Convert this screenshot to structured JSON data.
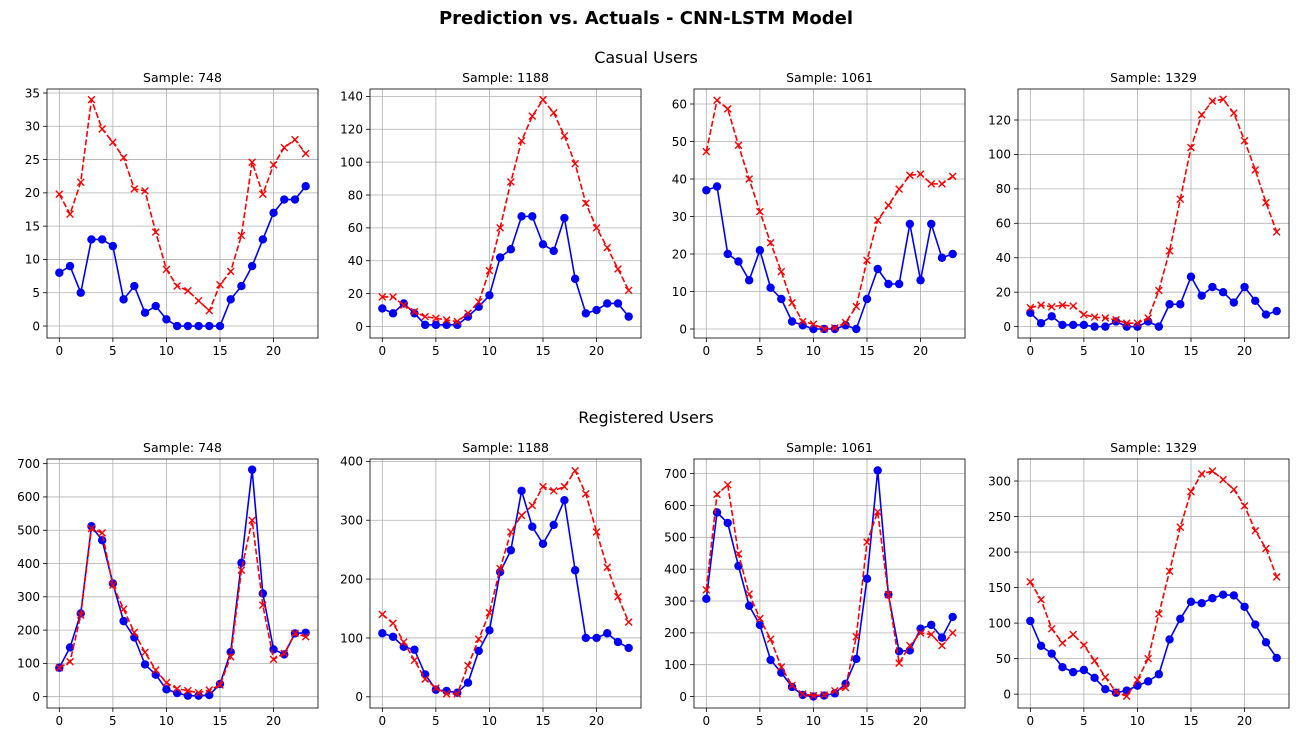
{
  "figure": {
    "title": "Prediction vs. Actuals - CNN-LSTM Model",
    "row_titles": [
      "Casual Users",
      "Registered Users"
    ]
  },
  "colors": {
    "actual": "#0000ff",
    "predicted": "#ff0000",
    "grid": "#b0b0b0"
  },
  "chart_data": [
    {
      "type": "line",
      "group": "Casual Users",
      "title": "Sample: 748",
      "x": [
        0,
        1,
        2,
        3,
        4,
        5,
        6,
        7,
        8,
        9,
        10,
        11,
        12,
        13,
        14,
        15,
        16,
        17,
        18,
        19,
        20,
        21,
        22,
        23
      ],
      "xlim": [
        -1.15,
        24.15
      ],
      "xticks": [
        0,
        5,
        10,
        15,
        20
      ],
      "ylim": [
        -1.8,
        35.6
      ],
      "yticks": [
        0,
        5,
        10,
        15,
        20,
        25,
        30,
        35
      ],
      "grid": true,
      "series": [
        {
          "role": "actual",
          "marker": "circle",
          "style": "solid",
          "values": [
            8,
            9,
            5,
            13,
            13,
            12,
            4,
            6,
            2,
            3,
            1,
            0,
            0,
            0,
            0,
            0,
            4,
            6,
            9,
            13,
            17,
            19,
            19,
            21
          ]
        },
        {
          "role": "predicted",
          "marker": "x",
          "style": "dashed",
          "values": [
            19.8,
            16.8,
            21.6,
            34,
            29.6,
            27.6,
            25.3,
            20.6,
            20.3,
            14.1,
            8.5,
            6,
            5.3,
            3.8,
            2.3,
            6.2,
            8.2,
            13.6,
            24.6,
            19.8,
            24.2,
            26.8,
            28,
            25.9
          ]
        }
      ]
    },
    {
      "type": "line",
      "group": "Casual Users",
      "title": "Sample: 1188",
      "x": [
        0,
        1,
        2,
        3,
        4,
        5,
        6,
        7,
        8,
        9,
        10,
        11,
        12,
        13,
        14,
        15,
        16,
        17,
        18,
        19,
        20,
        21,
        22,
        23
      ],
      "xlim": [
        -1.15,
        24.15
      ],
      "xticks": [
        0,
        5,
        10,
        15,
        20
      ],
      "ylim": [
        -7,
        144.5
      ],
      "yticks": [
        0,
        20,
        40,
        60,
        80,
        100,
        120,
        140
      ],
      "grid": true,
      "series": [
        {
          "role": "actual",
          "marker": "circle",
          "style": "solid",
          "values": [
            11,
            8,
            14,
            8,
            1,
            1,
            1,
            1,
            6,
            12,
            19,
            42,
            47,
            67,
            67,
            50,
            46,
            66,
            29,
            8,
            10,
            14,
            14,
            6
          ]
        },
        {
          "role": "predicted",
          "marker": "x",
          "style": "dashed",
          "values": [
            18,
            18,
            13,
            9,
            6,
            5,
            4,
            3,
            8,
            15,
            34,
            60,
            88,
            113,
            128,
            138,
            130,
            116,
            99,
            75,
            60,
            48,
            35,
            22
          ]
        }
      ]
    },
    {
      "type": "line",
      "group": "Casual Users",
      "title": "Sample: 1061",
      "x": [
        0,
        1,
        2,
        3,
        4,
        5,
        6,
        7,
        8,
        9,
        10,
        11,
        12,
        13,
        14,
        15,
        16,
        17,
        18,
        19,
        20,
        21,
        22,
        23
      ],
      "xlim": [
        -1.15,
        24.15
      ],
      "xticks": [
        0,
        5,
        10,
        15,
        20
      ],
      "ylim": [
        -2.4,
        64
      ],
      "yticks": [
        0,
        10,
        20,
        30,
        40,
        50,
        60
      ],
      "grid": true,
      "series": [
        {
          "role": "actual",
          "marker": "circle",
          "style": "solid",
          "values": [
            37,
            38,
            20,
            18,
            13,
            21,
            11,
            8,
            2,
            1,
            0,
            0,
            0,
            1,
            0,
            8,
            16,
            12,
            12,
            28,
            13,
            28,
            19,
            20
          ]
        },
        {
          "role": "predicted",
          "marker": "x",
          "style": "dashed",
          "values": [
            47.3,
            61,
            58.7,
            49,
            40,
            31.3,
            23,
            15.3,
            7,
            2,
            1.3,
            0,
            0.3,
            1.7,
            6,
            18.3,
            29,
            33,
            37.3,
            41,
            41.3,
            38.7,
            38.7,
            40.7
          ]
        }
      ]
    },
    {
      "type": "line",
      "group": "Casual Users",
      "title": "Sample: 1329",
      "x": [
        0,
        1,
        2,
        3,
        4,
        5,
        6,
        7,
        8,
        9,
        10,
        11,
        12,
        13,
        14,
        15,
        16,
        17,
        18,
        19,
        20,
        21,
        22,
        23
      ],
      "xlim": [
        -1.15,
        24.15
      ],
      "xticks": [
        0,
        5,
        10,
        15,
        20
      ],
      "ylim": [
        -6.6,
        138
      ],
      "yticks": [
        0,
        20,
        40,
        60,
        80,
        100,
        120
      ],
      "grid": true,
      "series": [
        {
          "role": "actual",
          "marker": "circle",
          "style": "solid",
          "values": [
            8,
            2,
            6,
            1,
            1,
            1,
            0,
            0,
            3,
            0,
            0,
            3,
            0,
            13,
            13,
            29,
            18,
            23,
            20,
            14,
            23,
            15,
            7,
            9
          ]
        },
        {
          "role": "predicted",
          "marker": "x",
          "style": "dashed",
          "values": [
            11,
            12.5,
            11.5,
            12.5,
            12,
            7,
            5.5,
            5,
            4,
            2,
            2,
            5,
            21,
            44,
            74,
            104,
            123,
            131,
            132,
            124,
            108,
            91,
            72,
            55
          ]
        }
      ]
    },
    {
      "type": "line",
      "group": "Registered Users",
      "title": "Sample: 748",
      "x": [
        0,
        1,
        2,
        3,
        4,
        5,
        6,
        7,
        8,
        9,
        10,
        11,
        12,
        13,
        14,
        15,
        16,
        17,
        18,
        19,
        20,
        21,
        22,
        23
      ],
      "xlim": [
        -1.15,
        24.15
      ],
      "xticks": [
        0,
        5,
        10,
        15,
        20
      ],
      "ylim": [
        -34,
        714
      ],
      "yticks": [
        0,
        100,
        200,
        300,
        400,
        500,
        600,
        700
      ],
      "grid": true,
      "series": [
        {
          "role": "actual",
          "marker": "circle",
          "style": "solid",
          "values": [
            87,
            148,
            250,
            512,
            470,
            340,
            227,
            178,
            97,
            66,
            22,
            11,
            3,
            3,
            5,
            38,
            134,
            402,
            682,
            310,
            142,
            127,
            190,
            192
          ]
        },
        {
          "role": "predicted",
          "marker": "x",
          "style": "dashed",
          "values": [
            87,
            105,
            245,
            505,
            492,
            335,
            263,
            193,
            133,
            80,
            42,
            24,
            18,
            12,
            20,
            35,
            120,
            380,
            530,
            275,
            112,
            130,
            190,
            180
          ]
        }
      ]
    },
    {
      "type": "line",
      "group": "Registered Users",
      "title": "Sample: 1188",
      "x": [
        0,
        1,
        2,
        3,
        4,
        5,
        6,
        7,
        8,
        9,
        10,
        11,
        12,
        13,
        14,
        15,
        16,
        17,
        18,
        19,
        20,
        21,
        22,
        23
      ],
      "xlim": [
        -1.15,
        24.15
      ],
      "xticks": [
        0,
        5,
        10,
        15,
        20
      ],
      "ylim": [
        -19,
        404
      ],
      "yticks": [
        0,
        100,
        200,
        300,
        400
      ],
      "grid": true,
      "series": [
        {
          "role": "actual",
          "marker": "circle",
          "style": "solid",
          "values": [
            108,
            102,
            85,
            80,
            38,
            12,
            10,
            7,
            24,
            78,
            113,
            212,
            249,
            350,
            289,
            260,
            292,
            334,
            215,
            100,
            100,
            108,
            93,
            83
          ]
        },
        {
          "role": "predicted",
          "marker": "x",
          "style": "dashed",
          "values": [
            140,
            125,
            93,
            62,
            30,
            15,
            5,
            5,
            53,
            98,
            143,
            218,
            280,
            308,
            325,
            357,
            350,
            357,
            384,
            345,
            280,
            220,
            170,
            127
          ]
        }
      ]
    },
    {
      "type": "line",
      "group": "Registered Users",
      "title": "Sample: 1061",
      "x": [
        0,
        1,
        2,
        3,
        4,
        5,
        6,
        7,
        8,
        9,
        10,
        11,
        12,
        13,
        14,
        15,
        16,
        17,
        18,
        19,
        20,
        21,
        22,
        23
      ],
      "xlim": [
        -1.15,
        24.15
      ],
      "xticks": [
        0,
        5,
        10,
        15,
        20
      ],
      "ylim": [
        -36,
        746
      ],
      "yticks": [
        0,
        100,
        200,
        300,
        400,
        500,
        600,
        700
      ],
      "grid": true,
      "series": [
        {
          "role": "actual",
          "marker": "circle",
          "style": "solid",
          "values": [
            307,
            578,
            545,
            410,
            285,
            225,
            115,
            75,
            30,
            5,
            0,
            3,
            10,
            40,
            118,
            370,
            710,
            320,
            142,
            145,
            213,
            225,
            185,
            250
          ]
        },
        {
          "role": "predicted",
          "marker": "x",
          "style": "dashed",
          "values": [
            335,
            635,
            665,
            448,
            322,
            245,
            180,
            93,
            35,
            8,
            3,
            5,
            18,
            28,
            188,
            485,
            580,
            320,
            105,
            160,
            200,
            195,
            160,
            200
          ]
        }
      ]
    },
    {
      "type": "line",
      "group": "Registered Users",
      "title": "Sample: 1329",
      "x": [
        0,
        1,
        2,
        3,
        4,
        5,
        6,
        7,
        8,
        9,
        10,
        11,
        12,
        13,
        14,
        15,
        16,
        17,
        18,
        19,
        20,
        21,
        22,
        23
      ],
      "xlim": [
        -1.15,
        24.15
      ],
      "xticks": [
        0,
        5,
        10,
        15,
        20
      ],
      "ylim": [
        -19.5,
        331
      ],
      "yticks": [
        0,
        50,
        100,
        150,
        200,
        250,
        300
      ],
      "grid": true,
      "series": [
        {
          "role": "actual",
          "marker": "circle",
          "style": "solid",
          "values": [
            103,
            68,
            57,
            38,
            31,
            34,
            23,
            7,
            2,
            5,
            12,
            18,
            28,
            77,
            106,
            130,
            128,
            135,
            140,
            139,
            123,
            98,
            73,
            51
          ]
        },
        {
          "role": "predicted",
          "marker": "x",
          "style": "dashed",
          "values": [
            158,
            133,
            92,
            72,
            84,
            69,
            47,
            24,
            3,
            -3,
            20,
            50,
            113,
            173,
            235,
            285,
            310,
            314,
            302,
            288,
            265,
            230,
            205,
            165
          ]
        }
      ]
    }
  ]
}
